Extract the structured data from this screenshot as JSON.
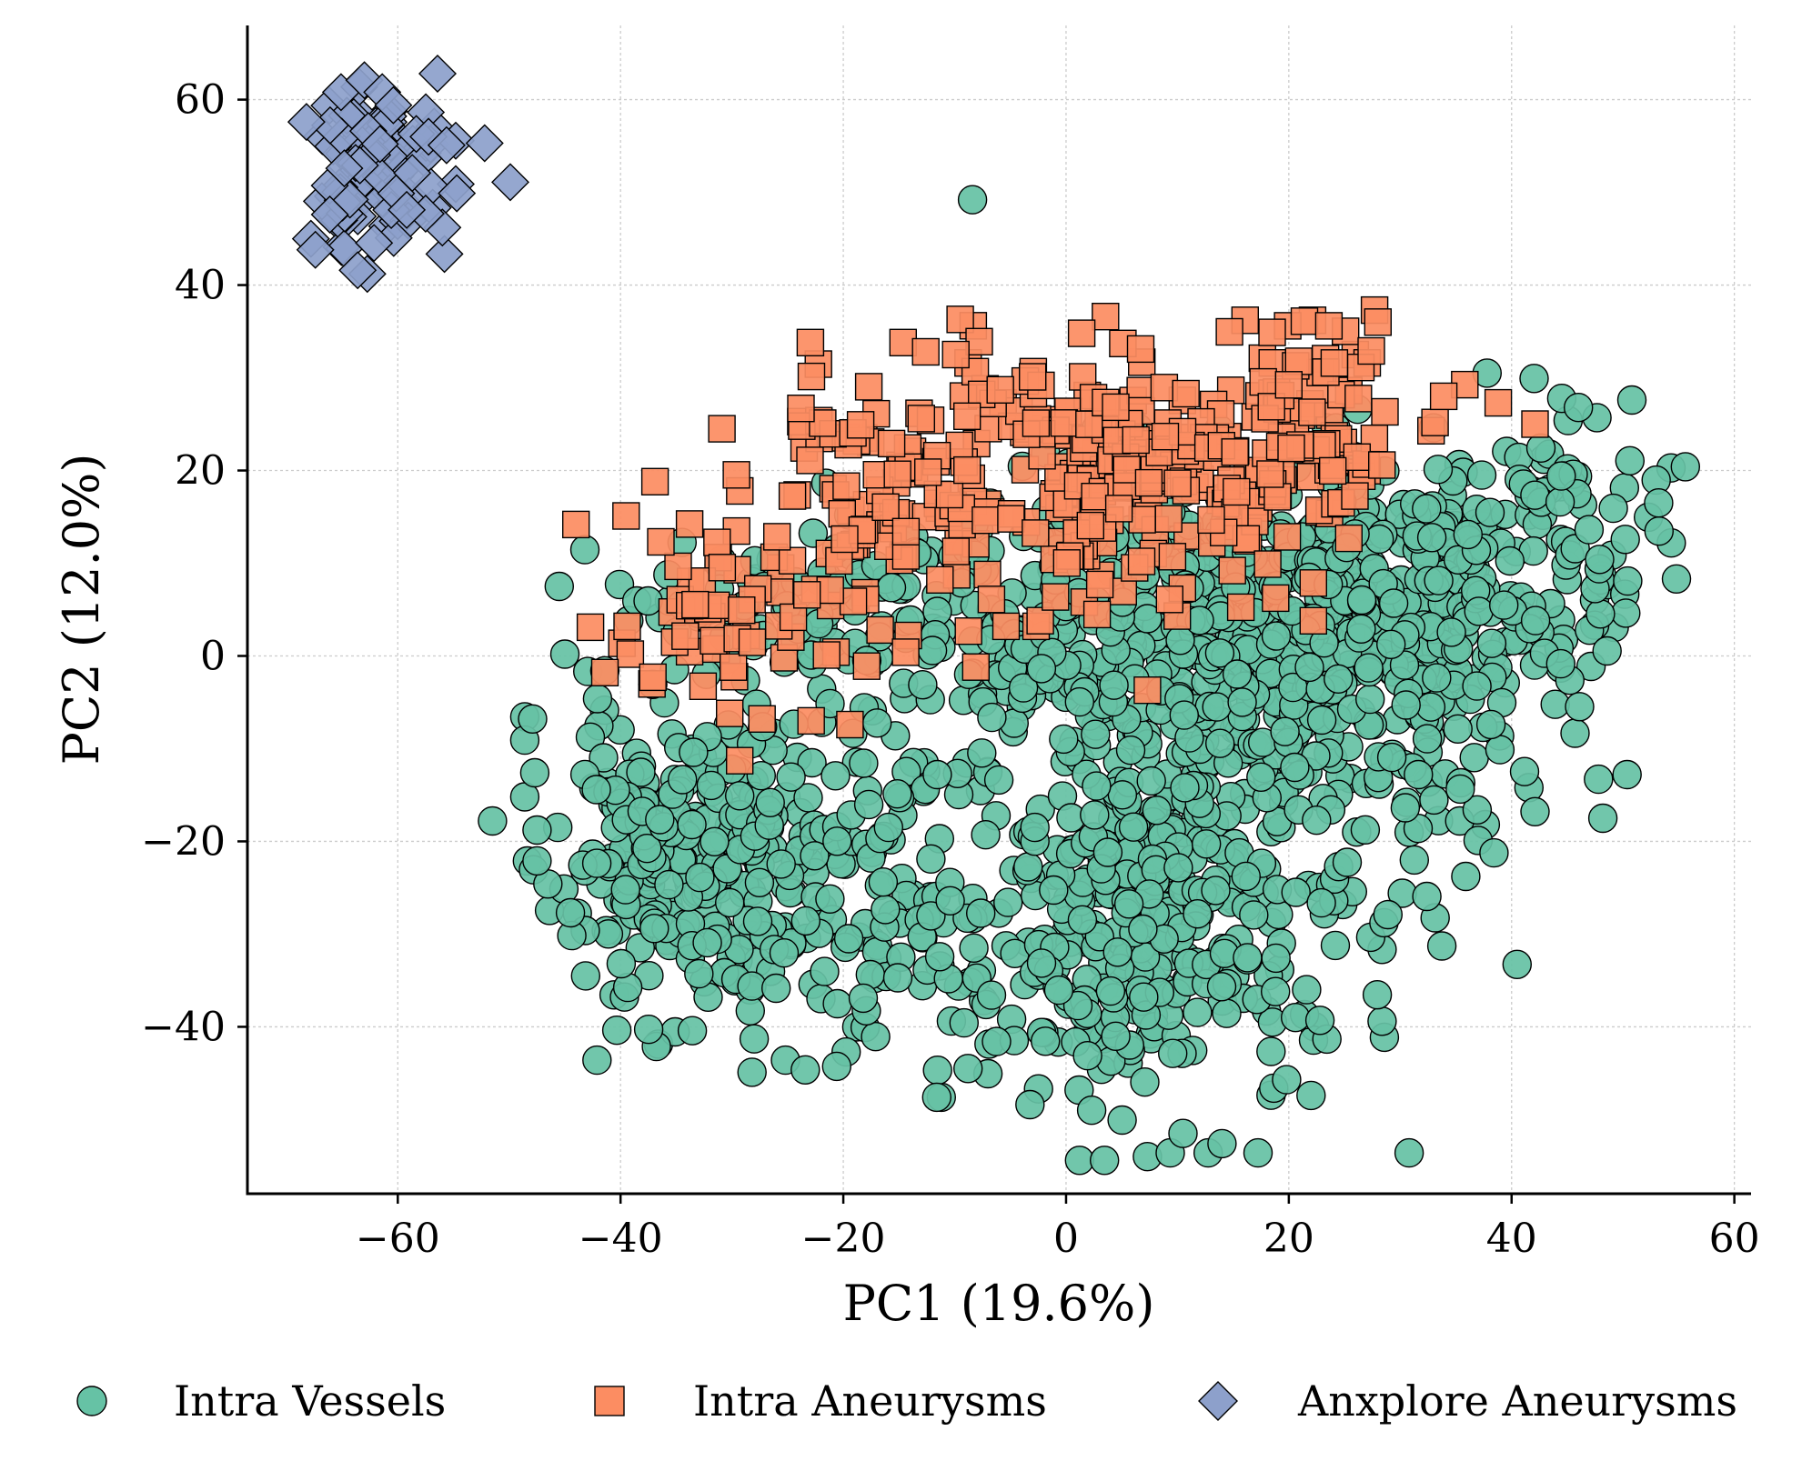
{
  "chart_data": {
    "type": "scatter",
    "title": "",
    "xlabel": "PC1 (19.6%)",
    "ylabel": "PC2 (12.0%)",
    "xlim": [
      -73.5,
      61.5
    ],
    "ylim": [
      -58,
      68
    ],
    "xticks": [
      -60,
      -40,
      -20,
      0,
      20,
      40,
      60
    ],
    "yticks": [
      -40,
      -20,
      0,
      20,
      40,
      60
    ],
    "xtick_labels": [
      "−60",
      "−40",
      "−20",
      "0",
      "20",
      "40",
      "60"
    ],
    "ytick_labels": [
      "−40",
      "−20",
      "0",
      "20",
      "40",
      "60"
    ],
    "grid": true,
    "legend_position": "bottom",
    "series": [
      {
        "name": "Intra Vessels",
        "marker": "circle",
        "color": "#66c2a5",
        "regions": [
          {
            "cx": -33,
            "cy": -22,
            "sx": 6.5,
            "sy": 9,
            "n": 300,
            "seed": 11
          },
          {
            "cx": -14,
            "cy": -26,
            "sx": 5.5,
            "sy": 9,
            "n": 120,
            "seed": 12
          },
          {
            "cx": 4,
            "cy": -28,
            "sx": 6,
            "sy": 11,
            "n": 220,
            "seed": 13
          },
          {
            "cx": 14,
            "cy": -20,
            "sx": 7,
            "sy": 14,
            "n": 160,
            "seed": 14
          },
          {
            "cx": 18,
            "cy": 3,
            "sx": 11,
            "sy": 9,
            "n": 380,
            "seed": 15
          },
          {
            "cx": 33,
            "cy": 5,
            "sx": 8,
            "sy": 9,
            "n": 260,
            "seed": 16
          },
          {
            "cx": -24,
            "cy": 6,
            "sx": 8,
            "sy": 4.5,
            "n": 90,
            "seed": 17
          },
          {
            "cx": -3,
            "cy": 4,
            "sx": 8,
            "sy": 7,
            "n": 110,
            "seed": 18
          },
          {
            "cx": 46,
            "cy": 17,
            "sx": 4,
            "sy": 6,
            "n": 40,
            "seed": 19
          },
          {
            "cx": 28,
            "cy": -25,
            "sx": 7,
            "sy": 6,
            "n": 25,
            "seed": 20
          }
        ],
        "points": [
          [
            -51.5,
            -17.8
          ],
          [
            -45.5,
            7.5
          ],
          [
            -45,
            0.2
          ],
          [
            37.8,
            30.5
          ],
          [
            46,
            26.8
          ],
          [
            50.8,
            27.6
          ],
          [
            55.6,
            20.4
          ],
          [
            54.8,
            8.3
          ],
          [
            48.2,
            -17.5
          ],
          [
            47.8,
            -13.3
          ],
          [
            42.1,
            -16.8
          ],
          [
            -28.2,
            -44.9
          ],
          [
            14,
            -52.6
          ],
          [
            10.5,
            -51.5
          ],
          [
            2.3,
            -49
          ],
          [
            -28,
            -41.3
          ],
          [
            19.8,
            -45.7
          ],
          [
            22,
            -47.4
          ],
          [
            -47.9,
            -6.8
          ],
          [
            -47.7,
            -12.6
          ],
          [
            -47.5,
            -22.1
          ],
          [
            -44.5,
            -27.7
          ],
          [
            28.9,
            -27.9
          ],
          [
            20.6,
            -39
          ],
          [
            22.8,
            -39.3
          ],
          [
            21.6,
            -36
          ],
          [
            18.8,
            -36.2
          ],
          [
            -8.8,
            -44.5
          ],
          [
            -8.4,
            49.2
          ],
          [
            53.2,
            16.5
          ]
        ]
      },
      {
        "name": "Intra Aneurysms",
        "marker": "square",
        "color": "#fc8d62",
        "regions": [
          {
            "cx": -17,
            "cy": 17,
            "sx": 7,
            "sy": 7,
            "n": 110,
            "seed": 31
          },
          {
            "cx": 3,
            "cy": 20,
            "sx": 8,
            "sy": 7,
            "n": 170,
            "seed": 32
          },
          {
            "cx": 19,
            "cy": 23,
            "sx": 7,
            "sy": 5.5,
            "n": 110,
            "seed": 33
          },
          {
            "cx": -32,
            "cy": 5,
            "sx": 5,
            "sy": 5,
            "n": 40,
            "seed": 34
          }
        ],
        "points": [
          [
            -9.5,
            36.3
          ],
          [
            -7.8,
            33.9
          ],
          [
            -12.6,
            32.8
          ],
          [
            -9.9,
            32.5
          ],
          [
            1.4,
            34.8
          ],
          [
            5.1,
            33.7
          ],
          [
            6.7,
            33.1
          ],
          [
            19.9,
            35.6
          ],
          [
            21.4,
            36.1
          ],
          [
            23.6,
            35.6
          ],
          [
            27.7,
            37.3
          ],
          [
            28,
            36
          ],
          [
            27.4,
            32.9
          ],
          [
            18.5,
            34.9
          ],
          [
            7.3,
            -3.7
          ],
          [
            -29.3,
            -11.3
          ],
          [
            -27.3,
            -6.8
          ],
          [
            -30.2,
            -6.2
          ],
          [
            -19.4,
            -7.4
          ],
          [
            -8.1,
            -1.2
          ],
          [
            -14.4,
            0.4
          ],
          [
            -17.9,
            -1.1
          ],
          [
            -21.5,
            0.1
          ],
          [
            -41.4,
            -1.8
          ],
          [
            -37.1,
            -2.3
          ],
          [
            -39.4,
            3.2
          ],
          [
            -42.7,
            3.1
          ],
          [
            -36.9,
            18.8
          ],
          [
            -39.5,
            15.1
          ],
          [
            -30.9,
            24.5
          ],
          [
            -23.8,
            26.7
          ],
          [
            33.9,
            28
          ],
          [
            38.8,
            27.3
          ],
          [
            42.1,
            25
          ],
          [
            -3,
            30.1
          ],
          [
            -5.9,
            28.7
          ],
          [
            -2.7,
            25.1
          ],
          [
            -13,
            25.6
          ],
          [
            9.3,
            6.1
          ],
          [
            15.3,
            17.7
          ],
          [
            18.1,
            9.9
          ],
          [
            -6.7,
            6.1
          ]
        ]
      },
      {
        "name": "Anxplore Aneurysms",
        "marker": "diamond",
        "color": "#8da0cb",
        "regions": [
          {
            "cx": -62,
            "cy": 52,
            "sx": 3,
            "sy": 4.5,
            "n": 85,
            "seed": 51
          }
        ],
        "points": [
          [
            -52.2,
            55.3
          ],
          [
            -49.9,
            51.1
          ],
          [
            -63.6,
            41.6
          ],
          [
            -67.8,
            45
          ],
          [
            -67.4,
            43.8
          ],
          [
            -68.2,
            57.6
          ],
          [
            -65.1,
            60.8
          ],
          [
            -63,
            62.1
          ],
          [
            -61.4,
            60.8
          ],
          [
            -60.4,
            59.4
          ],
          [
            -54.7,
            49.9
          ],
          [
            -56,
            46.2
          ],
          [
            -57.5,
            47.7
          ],
          [
            -59.2,
            48.1
          ],
          [
            -66.1,
            47.6
          ],
          [
            -64.8,
            52.6
          ],
          [
            -61.6,
            55.2
          ],
          [
            -58.7,
            52.1
          ]
        ]
      }
    ]
  }
}
